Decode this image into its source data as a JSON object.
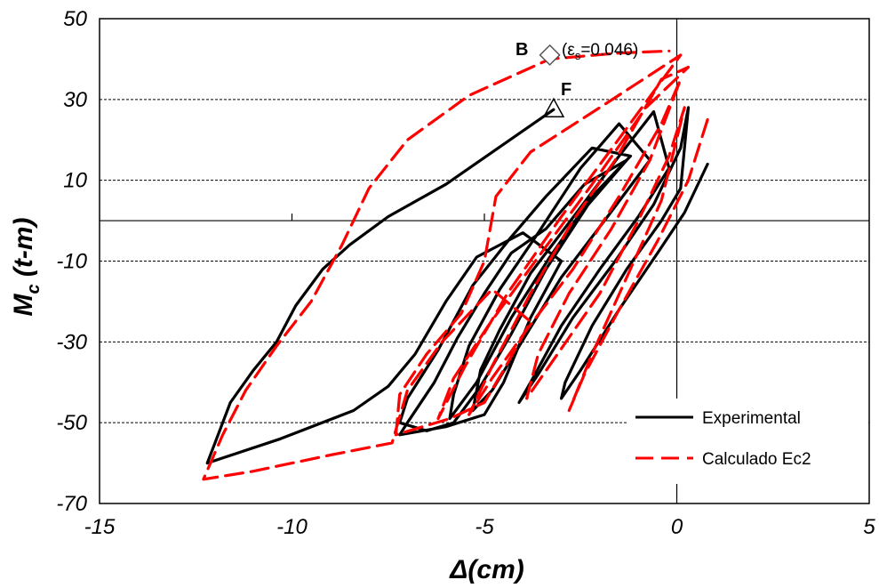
{
  "chart_data": {
    "type": "line",
    "xlabel": "Δ(cm)",
    "ylabel_main": "M",
    "ylabel_sub": "c",
    "ylabel_units": " (t-m)",
    "xlim": [
      -15,
      5
    ],
    "ylim": [
      -70,
      50
    ],
    "x_ticks": [
      -15,
      -10,
      -5,
      0,
      5
    ],
    "y_ticks": [
      -70,
      -50,
      -30,
      -10,
      10,
      30,
      50
    ],
    "grid_y": [
      -50,
      -30,
      -10,
      10,
      30
    ],
    "legend_position": "bottom-right",
    "legend": {
      "experimental": "Experimental",
      "calculated": "Calculado Ec2"
    },
    "annotations": {
      "point_b_letter": "B",
      "point_b_label_open": "(ε",
      "point_b_label_sub": "s",
      "point_b_label_close": "=0.046)",
      "point_f_letter": "F"
    },
    "markers": {
      "B": {
        "x": -3.3,
        "y": 41
      },
      "F": {
        "x": -3.2,
        "y": 27.5
      }
    },
    "colors": {
      "experimental": "#000000",
      "calculated": "#ff0000"
    },
    "series": [
      {
        "name": "Experimental",
        "points": [
          [
            0.8,
            14
          ],
          [
            0.2,
            2
          ],
          [
            -0.5,
            -8
          ],
          [
            -1.5,
            -22
          ],
          [
            -2.5,
            -37
          ],
          [
            -3.0,
            -44
          ],
          [
            -2.9,
            -40
          ],
          [
            -2.2,
            -26
          ],
          [
            -1.3,
            -12
          ],
          [
            -0.4,
            0
          ],
          [
            0.1,
            8
          ],
          [
            0.3,
            28
          ],
          [
            0.1,
            18
          ],
          [
            -0.6,
            4
          ],
          [
            -1.6,
            -10
          ],
          [
            -2.7,
            -24
          ],
          [
            -3.6,
            -38
          ],
          [
            -4.1,
            -45
          ],
          [
            -3.8,
            -40
          ],
          [
            -3.0,
            -26
          ],
          [
            -2.0,
            -12
          ],
          [
            -1.0,
            1
          ],
          [
            -0.2,
            13
          ],
          [
            -0.6,
            27
          ],
          [
            -1.5,
            16
          ],
          [
            -2.6,
            2
          ],
          [
            -3.8,
            -13
          ],
          [
            -4.6,
            -27
          ],
          [
            -5.1,
            -37
          ],
          [
            -5.3,
            -47
          ],
          [
            -4.8,
            -42
          ],
          [
            -3.9,
            -28
          ],
          [
            -3.0,
            -14
          ],
          [
            -1.8,
            1
          ],
          [
            -0.7,
            15
          ],
          [
            -1.5,
            24
          ],
          [
            -2.5,
            13
          ],
          [
            -3.6,
            -3
          ],
          [
            -4.6,
            -17
          ],
          [
            -5.4,
            -31
          ],
          [
            -5.8,
            -43
          ],
          [
            -5.9,
            -49
          ],
          [
            -5.2,
            -40
          ],
          [
            -4.3,
            -24
          ],
          [
            -3.3,
            -9
          ],
          [
            -2.2,
            6
          ],
          [
            -1.2,
            16
          ],
          [
            -2.2,
            18
          ],
          [
            -3.4,
            6
          ],
          [
            -4.3,
            -4
          ],
          [
            -5.3,
            -16
          ],
          [
            -6.2,
            -32
          ],
          [
            -7.0,
            -44
          ],
          [
            -7.2,
            -50
          ],
          [
            -6.5,
            -52
          ],
          [
            -5.8,
            -50
          ],
          [
            -5.1,
            -41
          ],
          [
            -4.3,
            -28
          ],
          [
            -3.4,
            -12
          ],
          [
            -2.3,
            4
          ],
          [
            -1.3,
            15
          ],
          [
            -2.4,
            9
          ],
          [
            -3.4,
            -2
          ],
          [
            -4.3,
            -8
          ],
          [
            -5.0,
            -18
          ],
          [
            -5.7,
            -29
          ],
          [
            -6.3,
            -40
          ],
          [
            -7.0,
            -50
          ],
          [
            -7.2,
            -53
          ],
          [
            -6.0,
            -51
          ],
          [
            -5.0,
            -48
          ],
          [
            -4.5,
            -40
          ],
          [
            -3.8,
            -24
          ],
          [
            -3.0,
            -10
          ],
          [
            -4.0,
            -3
          ],
          [
            -5.2,
            -9
          ],
          [
            -6.0,
            -20
          ],
          [
            -6.8,
            -33
          ],
          [
            -7.5,
            -41
          ],
          [
            -8.4,
            -47
          ],
          [
            -10.3,
            -54
          ],
          [
            -12.2,
            -60
          ],
          [
            -12.0,
            -55
          ],
          [
            -11.6,
            -45
          ],
          [
            -11.0,
            -37
          ],
          [
            -10.4,
            -30
          ],
          [
            -9.9,
            -21
          ],
          [
            -9.2,
            -12
          ],
          [
            -8.5,
            -6
          ],
          [
            -7.5,
            1
          ],
          [
            -6.0,
            9
          ],
          [
            -3.2,
            27.5
          ]
        ]
      },
      {
        "name": "Calculado Ec2",
        "points": [
          [
            0.8,
            25
          ],
          [
            0.3,
            10
          ],
          [
            -0.5,
            -5
          ],
          [
            -1.5,
            -22
          ],
          [
            -2.4,
            -38
          ],
          [
            -2.8,
            -47
          ],
          [
            -2.2,
            -33
          ],
          [
            -1.3,
            -14
          ],
          [
            -0.4,
            5
          ],
          [
            0.2,
            28
          ],
          [
            -0.2,
            16
          ],
          [
            -1.0,
            0
          ],
          [
            -2.0,
            -18
          ],
          [
            -3.1,
            -33
          ],
          [
            -3.9,
            -44
          ],
          [
            -3.6,
            -33
          ],
          [
            -2.8,
            -18
          ],
          [
            -1.7,
            -2
          ],
          [
            -0.7,
            15
          ],
          [
            0.1,
            35
          ],
          [
            -0.4,
            24
          ],
          [
            -1.5,
            6
          ],
          [
            -2.7,
            -12
          ],
          [
            -3.9,
            -27
          ],
          [
            -4.8,
            -39
          ],
          [
            -5.4,
            -48
          ],
          [
            -4.8,
            -36
          ],
          [
            -3.8,
            -18
          ],
          [
            -2.7,
            0
          ],
          [
            -1.6,
            15
          ],
          [
            -0.4,
            35
          ],
          [
            0.3,
            38
          ],
          [
            -0.8,
            28
          ],
          [
            -2.2,
            9
          ],
          [
            -3.6,
            -9
          ],
          [
            -4.9,
            -26
          ],
          [
            -5.8,
            -39
          ],
          [
            -6.2,
            -49
          ],
          [
            -5.5,
            -36
          ],
          [
            -4.4,
            -18
          ],
          [
            -3.0,
            1
          ],
          [
            -1.6,
            19
          ],
          [
            -0.6,
            32
          ],
          [
            0.1,
            41
          ],
          [
            -2.0,
            28
          ],
          [
            -3.8,
            17
          ],
          [
            -4.7,
            6
          ],
          [
            -5.0,
            -10
          ],
          [
            -5.6,
            -23
          ],
          [
            -6.5,
            -33
          ],
          [
            -7.2,
            -43
          ],
          [
            -7.3,
            -53
          ],
          [
            -5.9,
            -49
          ],
          [
            -5.0,
            -45
          ],
          [
            -4.5,
            -37
          ],
          [
            -3.8,
            -25
          ],
          [
            -4.8,
            -17
          ],
          [
            -6.1,
            -30
          ],
          [
            -7.0,
            -42
          ],
          [
            -7.4,
            -55
          ],
          [
            -9.0,
            -58
          ],
          [
            -11.0,
            -62
          ],
          [
            -12.3,
            -64
          ],
          [
            -11.8,
            -53
          ],
          [
            -11.2,
            -42
          ],
          [
            -10.4,
            -31
          ],
          [
            -9.5,
            -20
          ],
          [
            -8.7,
            -6
          ],
          [
            -8.0,
            8
          ],
          [
            -7.0,
            20
          ],
          [
            -5.4,
            31
          ],
          [
            -3.3,
            40
          ],
          [
            -1.5,
            41.5
          ],
          [
            -0.2,
            42
          ]
        ]
      }
    ]
  }
}
